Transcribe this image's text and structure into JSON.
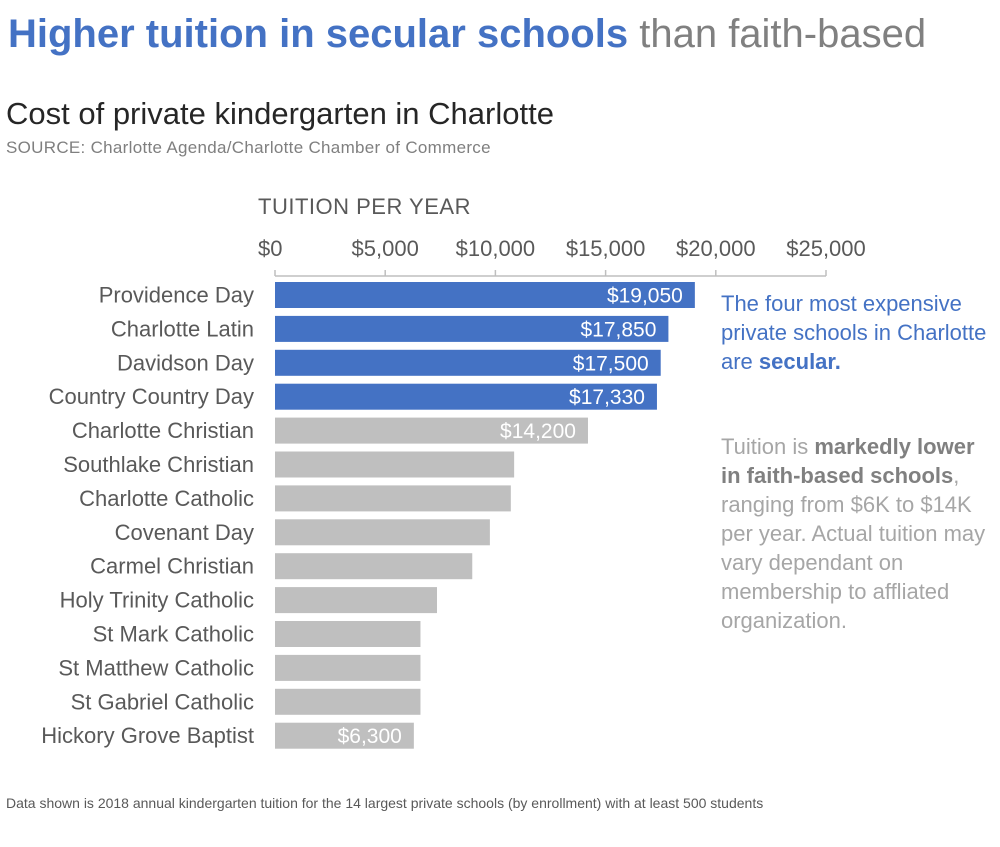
{
  "header": {
    "headline_highlight": "Higher tuition in secular schools",
    "headline_rest": " than faith-based",
    "subtitle": "Cost of private kindergarten in Charlotte",
    "source": "SOURCE: Charlotte Agenda/Charlotte Chamber of Commerce"
  },
  "notes": {
    "secular": {
      "text_before": "The four most expensive  private schools in Charlotte are ",
      "bold": "secular."
    },
    "faith": {
      "text_before": "Tuition is ",
      "bold": "markedly lower in faith-based schools",
      "text_after": ", ranging from $6K to $14K per year. Actual tuition may vary dependant  on membership to affliated organization."
    }
  },
  "footer": "Data shown is 2018 annual kindergarten tuition for the 14 largest private schools (by enrollment) with at least 500 students",
  "chart_data": {
    "type": "bar",
    "orientation": "horizontal",
    "xlabel": "TUITION PER YEAR",
    "xlim": [
      0,
      25000
    ],
    "x_ticks": [
      0,
      5000,
      10000,
      15000,
      20000,
      25000
    ],
    "x_tick_labels": [
      "$0",
      "$5,000",
      "$10,000",
      "$15,000",
      "$20,000",
      "$25,000"
    ],
    "axis_position": "top",
    "grid": false,
    "categories": [
      "Providence Day",
      "Charlotte Latin",
      "Davidson Day",
      "Country Country Day",
      "Charlotte Christian",
      "Southlake Christian",
      "Charlotte Catholic",
      "Covenant Day",
      "Carmel Christian",
      "Holy Trinity Catholic",
      "St Mark Catholic",
      "St Matthew Catholic",
      "St Gabriel Catholic",
      "Hickory Grove Baptist"
    ],
    "values": [
      19050,
      17850,
      17500,
      17330,
      14200,
      10850,
      10700,
      9750,
      8950,
      7350,
      6600,
      6600,
      6600,
      6300
    ],
    "data_labels": [
      "$19,050",
      "$17,850",
      "$17,500",
      "$17,330",
      "$14,200",
      "",
      "",
      "",
      "",
      "",
      "",
      "",
      "",
      "$6,300"
    ],
    "groups": [
      "secular",
      "secular",
      "secular",
      "secular",
      "faith",
      "faith",
      "faith",
      "faith",
      "faith",
      "faith",
      "faith",
      "faith",
      "faith",
      "faith"
    ],
    "colors": {
      "secular": "#4472C4",
      "faith": "#BFBFBF",
      "axis": "#BFBFBF",
      "tick_label": "#595959",
      "category_label": "#595959",
      "data_label": "#ffffff"
    }
  }
}
